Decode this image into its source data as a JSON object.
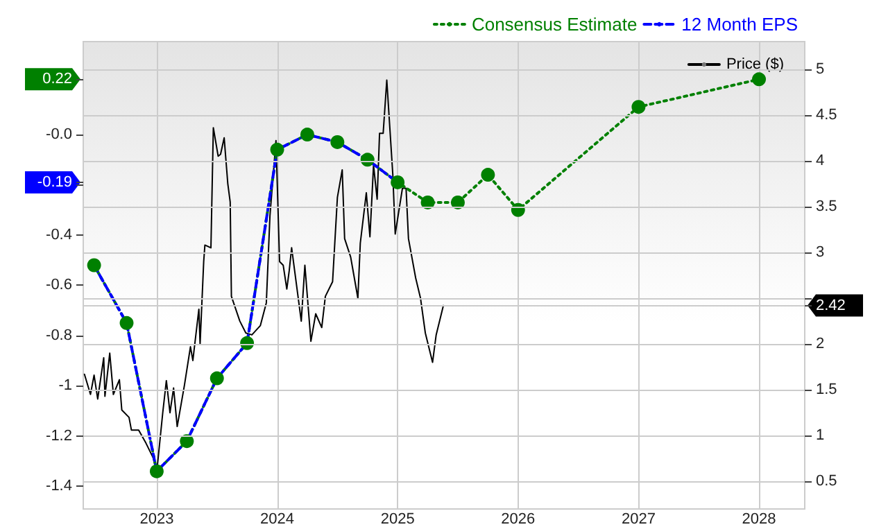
{
  "chart_data": {
    "type": "line",
    "xlim": [
      2022.39,
      2028.38
    ],
    "xticks": [
      {
        "value": 2023,
        "label": "2023"
      },
      {
        "value": 2024,
        "label": "2024"
      },
      {
        "value": 2025,
        "label": "2025"
      },
      {
        "value": 2026,
        "label": "2026"
      },
      {
        "value": 2027,
        "label": "2027"
      },
      {
        "value": 2028,
        "label": "2028"
      }
    ],
    "ylim": [
      -1.49,
      0.37
    ],
    "yticks": [
      0.22,
      {
        "value": 0,
        "label": "-0.0"
      },
      {
        "value": -0.2,
        "label": null
      },
      -0.19,
      -0.4,
      -0.6,
      -0.8,
      -1,
      -1.2,
      -1.4
    ],
    "y2lim": [
      0.2,
      5.3
    ],
    "y2ticks": [
      0.5,
      1,
      1.5,
      2,
      2.42,
      {
        "value": 2.5,
        "label": null
      },
      3,
      3.5,
      4,
      4.5,
      5
    ],
    "grid": true,
    "legend": "top right",
    "series": [
      {
        "name": "Consensus Estimate",
        "color": "#008000",
        "line_style": "dotted",
        "marker": "circle",
        "x": [
          2022.48,
          2022.75,
          2023.0,
          2023.25,
          2023.5,
          2023.75,
          2024.0,
          2024.25,
          2024.5,
          2024.75,
          2025.0,
          2025.25,
          2025.5,
          2025.75,
          2026.0,
          2027.0,
          2028.0
        ],
        "values": [
          -0.52,
          -0.75,
          -1.34,
          -1.22,
          -0.97,
          -0.83,
          -0.06,
          0.0,
          -0.03,
          -0.1,
          -0.19,
          -0.27,
          -0.27,
          -0.16,
          -0.3,
          0.11,
          0.22
        ]
      },
      {
        "name": "12 Month EPS",
        "color": "#0000ff",
        "line_style": "dashed",
        "marker": "none",
        "x": [
          2022.48,
          2022.75,
          2023.0,
          2023.25,
          2023.5,
          2023.75,
          2024.0,
          2024.25,
          2024.5,
          2024.75,
          2025.0
        ],
        "values": [
          -0.52,
          -0.75,
          -1.34,
          -1.22,
          -0.97,
          -0.83,
          -0.06,
          0.0,
          -0.03,
          -0.1,
          -0.19
        ]
      },
      {
        "name": "Price ($)",
        "color": "#000000",
        "line_style": "solid",
        "marker": "none",
        "axis": "y2",
        "x": [
          2022.4,
          2022.45,
          2022.48,
          2022.51,
          2022.56,
          2022.57,
          2022.61,
          2022.64,
          2022.69,
          2022.71,
          2022.77,
          2022.79,
          2022.85,
          2022.91,
          2022.97,
          2023.0,
          2023.05,
          2023.08,
          2023.11,
          2023.14,
          2023.17,
          2023.23,
          2023.28,
          2023.3,
          2023.35,
          2023.36,
          2023.39,
          2023.4,
          2023.45,
          2023.47,
          2023.51,
          2023.53,
          2023.56,
          2023.59,
          2023.61,
          2023.62,
          2023.69,
          2023.74,
          2023.79,
          2023.86,
          2023.91,
          2023.94,
          2023.99,
          2024.02,
          2024.05,
          2024.08,
          2024.1,
          2024.12,
          2024.2,
          2024.23,
          2024.28,
          2024.32,
          2024.37,
          2024.4,
          2024.46,
          2024.5,
          2024.54,
          2024.56,
          2024.61,
          2024.67,
          2024.69,
          2024.74,
          2024.77,
          2024.8,
          2024.83,
          2024.85,
          2024.88,
          2024.91,
          2024.96,
          2024.98,
          2025.04,
          2025.07,
          2025.09,
          2025.15,
          2025.19,
          2025.23,
          2025.29,
          2025.32,
          2025.38
        ],
        "values": [
          1.67,
          1.45,
          1.66,
          1.4,
          1.85,
          1.43,
          1.9,
          1.45,
          1.61,
          1.28,
          1.2,
          1.06,
          1.06,
          0.92,
          0.76,
          0.6,
          1.25,
          1.6,
          1.25,
          1.52,
          1.1,
          1.55,
          1.97,
          1.82,
          2.38,
          2.0,
          2.9,
          3.08,
          3.05,
          4.36,
          4.05,
          4.07,
          4.25,
          3.75,
          3.55,
          2.52,
          2.25,
          2.12,
          2.1,
          2.2,
          2.45,
          3.4,
          4.22,
          2.9,
          2.86,
          2.6,
          2.8,
          3.05,
          2.25,
          2.86,
          2.03,
          2.33,
          2.18,
          2.52,
          2.68,
          3.6,
          3.9,
          3.15,
          2.95,
          2.5,
          3.1,
          3.65,
          3.17,
          3.95,
          3.58,
          4.3,
          4.3,
          4.88,
          3.85,
          3.2,
          3.7,
          3.7,
          3.15,
          2.72,
          2.5,
          2.12,
          1.8,
          2.1,
          2.42
        ]
      }
    ]
  }
}
